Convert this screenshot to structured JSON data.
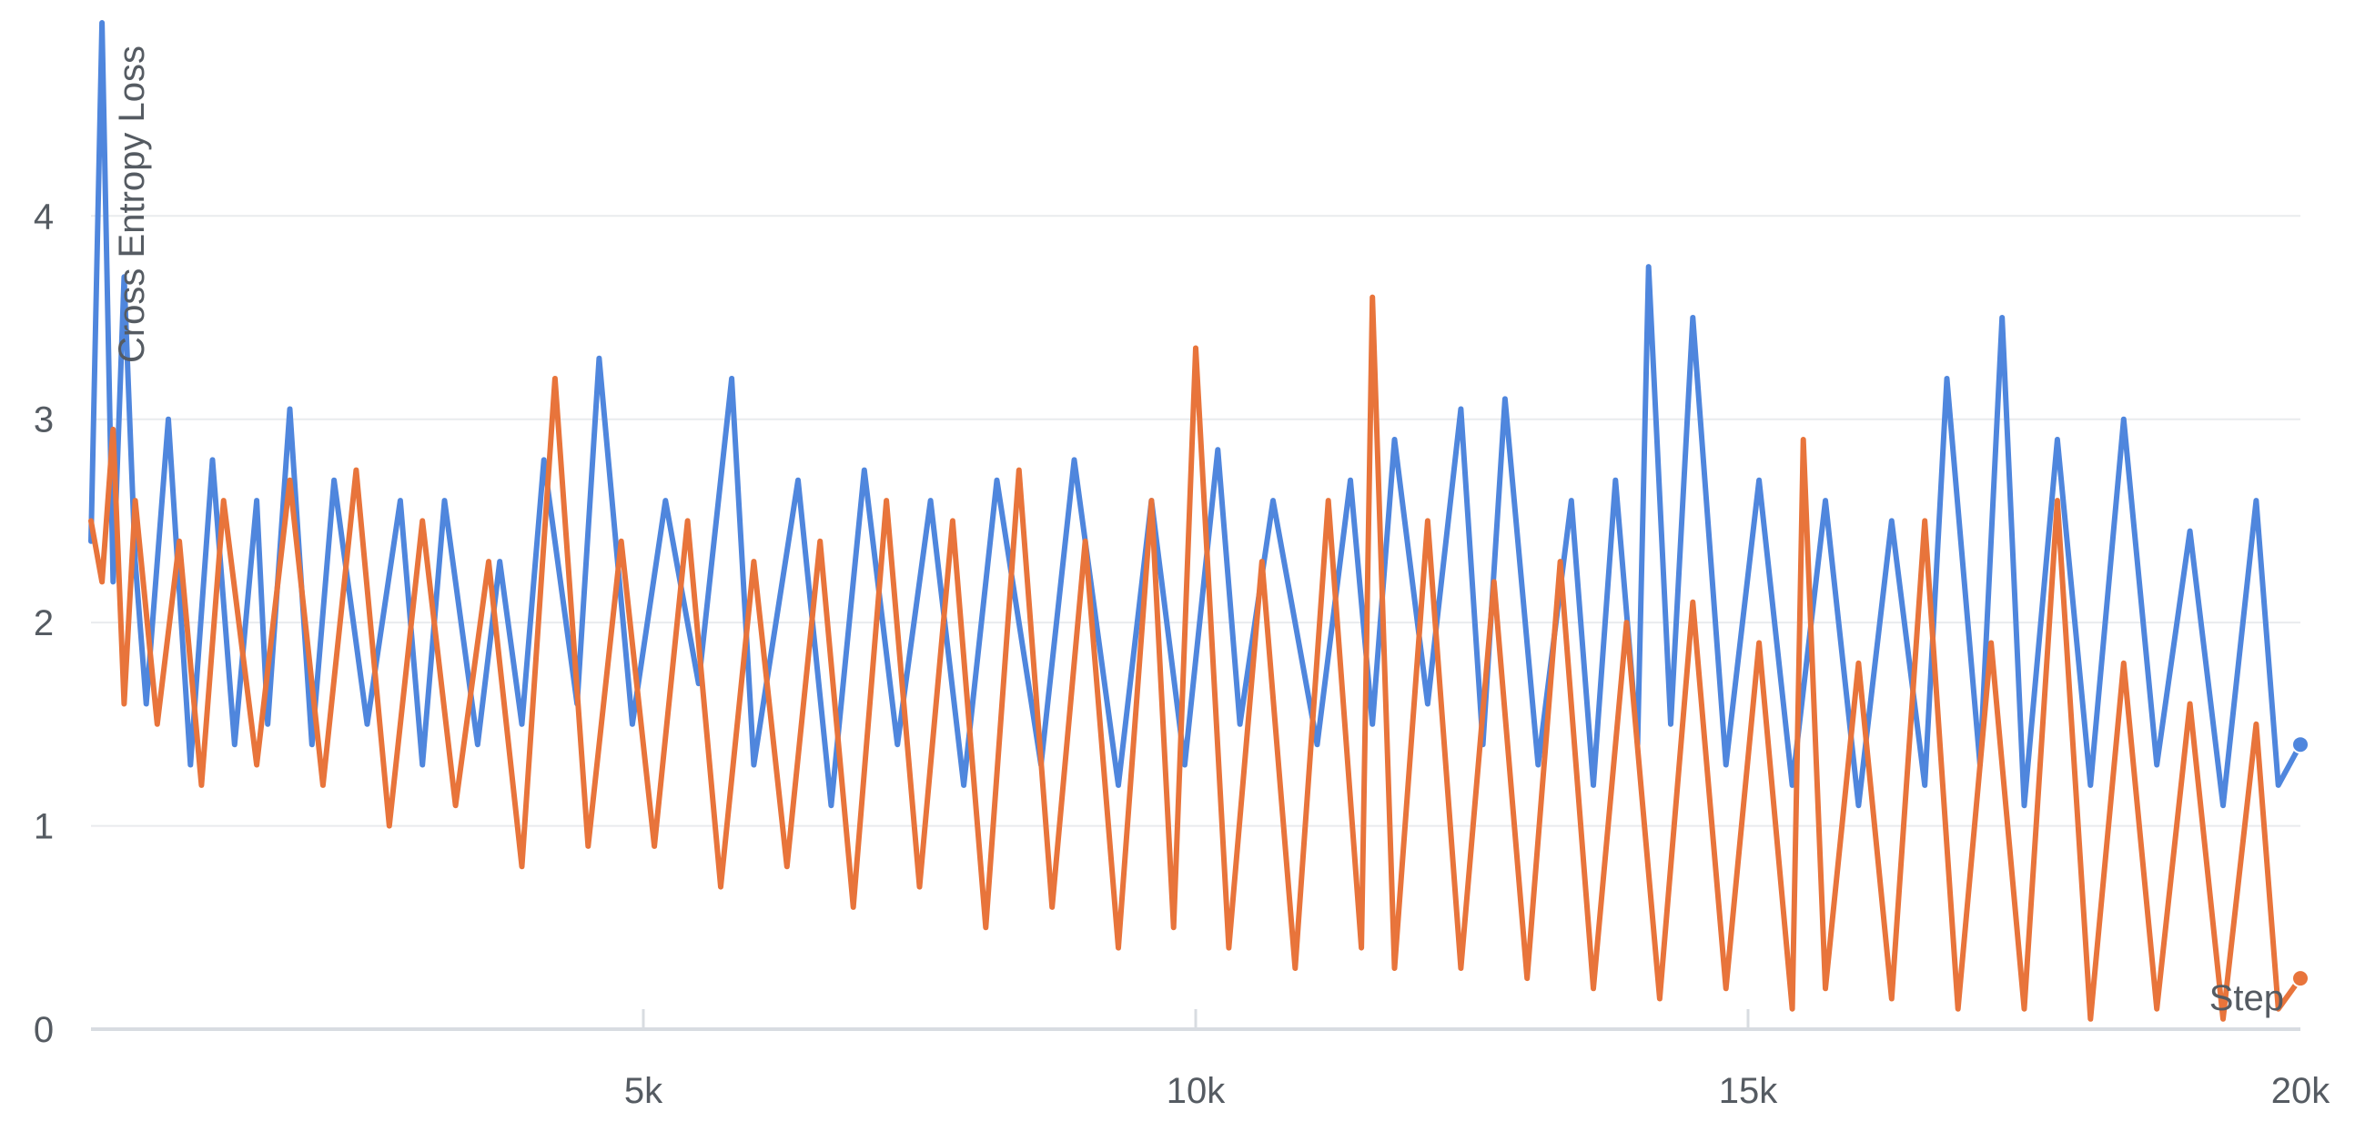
{
  "chart_data": {
    "type": "line",
    "ylabel": "Cross Entropy Loss",
    "xlabel": "Step",
    "xlim": [
      0,
      20000
    ],
    "ylim": [
      0,
      4.95
    ],
    "grid": true,
    "x_ticks": [
      {
        "value": 5000,
        "label": "5k"
      },
      {
        "value": 10000,
        "label": "10k"
      },
      {
        "value": 15000,
        "label": "15k"
      },
      {
        "value": 20000,
        "label": "20k"
      }
    ],
    "y_ticks": [
      {
        "value": 0,
        "label": "0"
      },
      {
        "value": 1,
        "label": "1"
      },
      {
        "value": 2,
        "label": "2"
      },
      {
        "value": 3,
        "label": "3"
      },
      {
        "value": 4,
        "label": "4"
      }
    ],
    "colors": {
      "series_1": "#4f86dd",
      "series_2": "#e8743b",
      "grid": "#e9ebee",
      "axis": "#d8dce1",
      "text": "#555b62"
    },
    "series": [
      {
        "color": "#4f86dd",
        "x": [
          0,
          100,
          200,
          300,
          400,
          500,
          700,
          900,
          1100,
          1300,
          1500,
          1600,
          1800,
          2000,
          2200,
          2500,
          2800,
          3000,
          3200,
          3500,
          3700,
          3900,
          4100,
          4400,
          4600,
          4900,
          5200,
          5500,
          5800,
          6000,
          6400,
          6700,
          7000,
          7300,
          7600,
          7900,
          8200,
          8600,
          8900,
          9300,
          9600,
          9900,
          10200,
          10400,
          10700,
          11100,
          11400,
          11600,
          11800,
          12100,
          12400,
          12600,
          12800,
          13100,
          13400,
          13600,
          13800,
          14000,
          14100,
          14300,
          14500,
          14800,
          15100,
          15400,
          15700,
          16000,
          16300,
          16600,
          16800,
          17100,
          17300,
          17500,
          17800,
          18100,
          18400,
          18700,
          19000,
          19300,
          19600,
          19800,
          20000
        ],
        "y": [
          2.4,
          4.95,
          2.2,
          3.7,
          2.3,
          1.6,
          3.0,
          1.3,
          2.8,
          1.4,
          2.6,
          1.5,
          3.05,
          1.4,
          2.7,
          1.5,
          2.6,
          1.3,
          2.6,
          1.4,
          2.3,
          1.5,
          2.8,
          1.6,
          3.3,
          1.5,
          2.6,
          1.7,
          3.2,
          1.3,
          2.7,
          1.1,
          2.75,
          1.4,
          2.6,
          1.2,
          2.7,
          1.3,
          2.8,
          1.2,
          2.6,
          1.3,
          2.85,
          1.5,
          2.6,
          1.4,
          2.7,
          1.5,
          2.9,
          1.6,
          3.05,
          1.4,
          3.1,
          1.3,
          2.6,
          1.2,
          2.7,
          1.4,
          3.75,
          1.5,
          3.5,
          1.3,
          2.7,
          1.2,
          2.6,
          1.1,
          2.5,
          1.2,
          3.2,
          1.3,
          3.5,
          1.1,
          2.9,
          1.2,
          3.0,
          1.3,
          2.45,
          1.1,
          2.6,
          1.2,
          1.4
        ]
      },
      {
        "color": "#e8743b",
        "x": [
          0,
          100,
          200,
          300,
          400,
          600,
          800,
          1000,
          1200,
          1500,
          1800,
          2100,
          2400,
          2700,
          3000,
          3300,
          3600,
          3900,
          4200,
          4500,
          4800,
          5100,
          5400,
          5700,
          6000,
          6300,
          6600,
          6900,
          7200,
          7500,
          7800,
          8100,
          8400,
          8700,
          9000,
          9300,
          9600,
          9800,
          10000,
          10300,
          10600,
          10900,
          11200,
          11500,
          11600,
          11800,
          12100,
          12400,
          12700,
          13000,
          13300,
          13600,
          13900,
          14200,
          14500,
          14800,
          15100,
          15400,
          15500,
          15700,
          16000,
          16300,
          16600,
          16900,
          17200,
          17500,
          17800,
          18100,
          18400,
          18700,
          19000,
          19300,
          19600,
          19800,
          20000
        ],
        "y": [
          2.5,
          2.2,
          2.95,
          1.6,
          2.6,
          1.5,
          2.4,
          1.2,
          2.6,
          1.3,
          2.7,
          1.2,
          2.75,
          1.0,
          2.5,
          1.1,
          2.3,
          0.8,
          3.2,
          0.9,
          2.4,
          0.9,
          2.5,
          0.7,
          2.3,
          0.8,
          2.4,
          0.6,
          2.6,
          0.7,
          2.5,
          0.5,
          2.75,
          0.6,
          2.4,
          0.4,
          2.6,
          0.5,
          3.35,
          0.4,
          2.3,
          0.3,
          2.6,
          0.4,
          3.6,
          0.3,
          2.5,
          0.3,
          2.2,
          0.25,
          2.3,
          0.2,
          2.0,
          0.15,
          2.1,
          0.2,
          1.9,
          0.1,
          2.9,
          0.2,
          1.8,
          0.15,
          2.5,
          0.1,
          1.9,
          0.1,
          2.6,
          0.05,
          1.8,
          0.1,
          1.6,
          0.05,
          1.5,
          0.1,
          0.25
        ]
      }
    ]
  }
}
